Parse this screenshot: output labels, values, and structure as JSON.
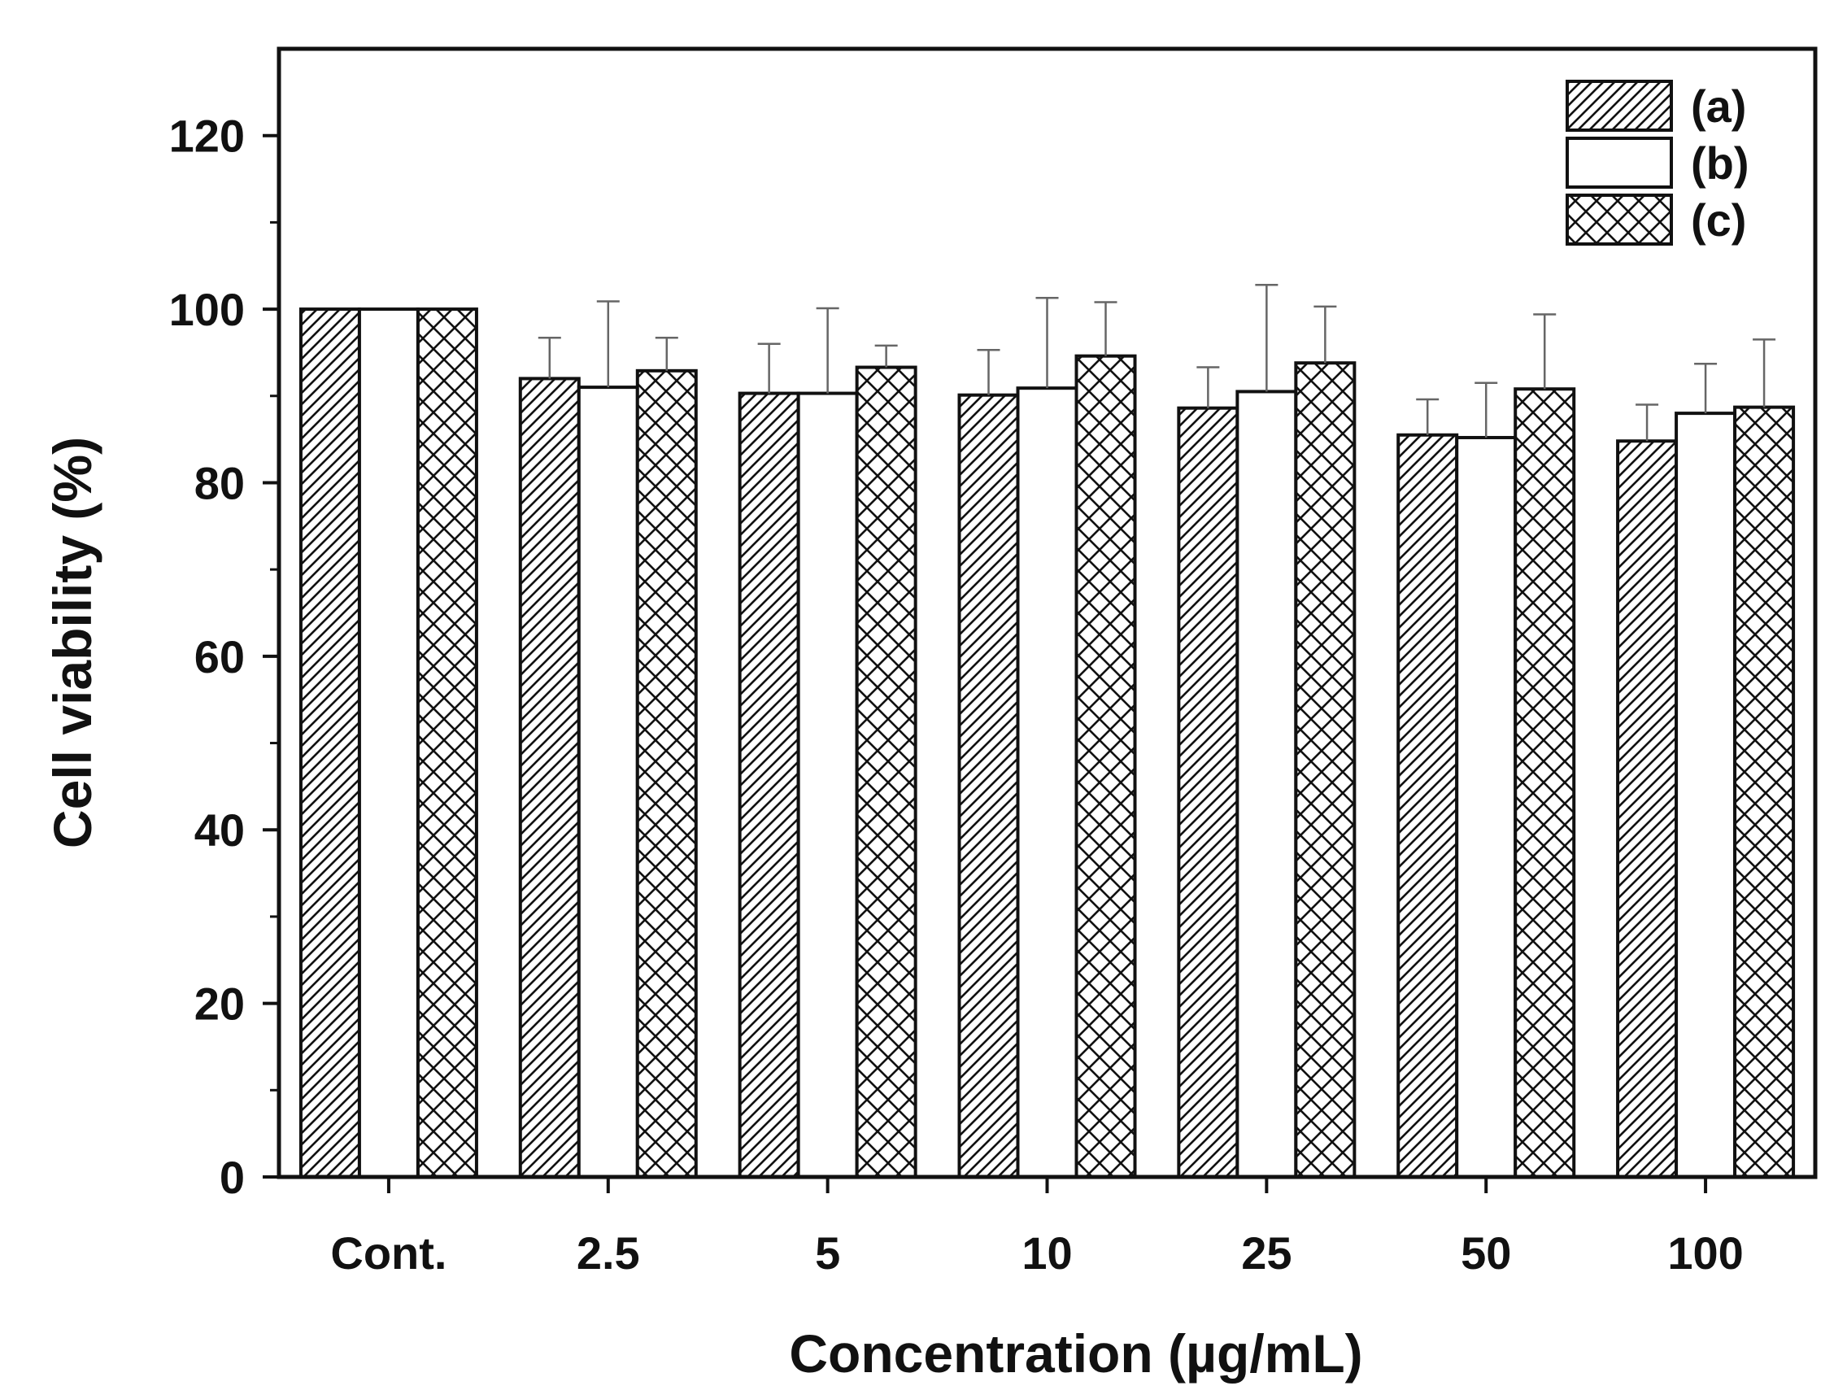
{
  "chart_data": {
    "type": "bar",
    "title": "",
    "xlabel": "Concentration (µg/mL)",
    "ylabel": "Cell viability (%)",
    "ylim": [
      0,
      130
    ],
    "yticks": [
      0,
      20,
      40,
      60,
      80,
      100,
      120
    ],
    "ytick_labels": [
      "0",
      "20",
      "40",
      "60",
      "80",
      "100",
      "120"
    ],
    "categories": [
      "Cont.",
      "2.5",
      "5",
      "10",
      "25",
      "50",
      "100"
    ],
    "legend_position": "top-right",
    "series": [
      {
        "name": "(a)",
        "pattern": "diagonal",
        "values": [
          100,
          92,
          90.3,
          90.1,
          88.6,
          85.5,
          84.8
        ],
        "errors": [
          0,
          4.7,
          5.7,
          5.2,
          4.7,
          4.1,
          4.2
        ]
      },
      {
        "name": "(b)",
        "pattern": "none",
        "values": [
          100,
          91,
          90.3,
          90.9,
          90.5,
          85.2,
          88.0
        ],
        "errors": [
          0,
          9.9,
          9.8,
          10.4,
          12.3,
          6.3,
          5.7
        ]
      },
      {
        "name": "(c)",
        "pattern": "crosshatch",
        "values": [
          100,
          92.9,
          93.3,
          94.6,
          93.8,
          90.8,
          88.7
        ],
        "errors": [
          0,
          3.8,
          2.5,
          6.2,
          6.5,
          8.6,
          7.8
        ]
      }
    ],
    "colors": {
      "line": "#111111",
      "fill": "#ffffff",
      "error_bar": "#666666"
    }
  }
}
